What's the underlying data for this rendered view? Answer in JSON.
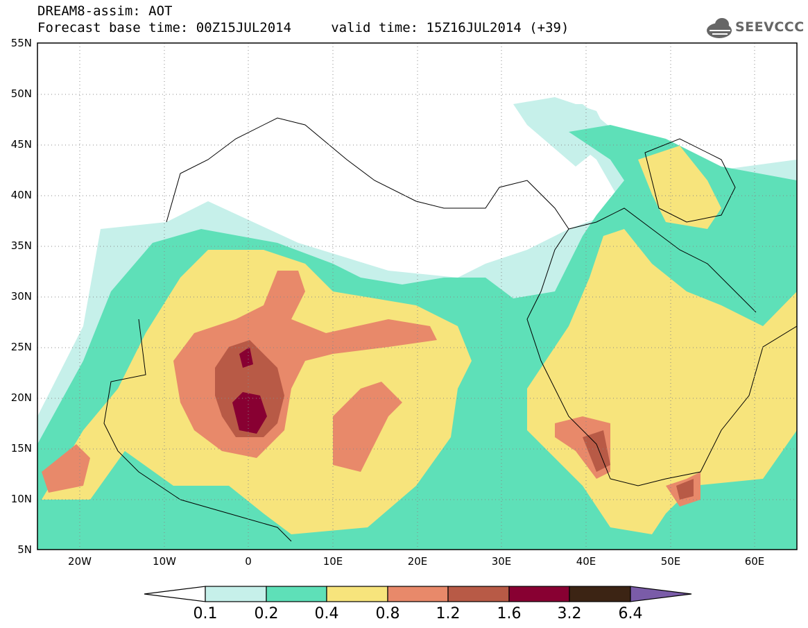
{
  "header": {
    "title_line1": "DREAM8-assim: AOT",
    "title_line2": "Forecast base time: 00Z15JUL2014     valid time: 15Z16JUL2014 (+39)",
    "logo_text": "SEEVCCC"
  },
  "map": {
    "lat_labels": [
      "55N",
      "50N",
      "45N",
      "40N",
      "35N",
      "30N",
      "25N",
      "20N",
      "15N",
      "10N",
      "5N"
    ],
    "lon_labels": [
      "20W",
      "10W",
      "0",
      "10E",
      "20E",
      "30E",
      "40E",
      "50E",
      "60E"
    ]
  },
  "colorbar": {
    "labels": [
      "0.1",
      "0.2",
      "0.4",
      "0.8",
      "1.2",
      "1.6",
      "3.2",
      "6.4"
    ],
    "colors": [
      "#c6f0ea",
      "#5ee0b8",
      "#f7e47c",
      "#e8896a",
      "#b85a46",
      "#880032",
      "#3c2414",
      "#7a5ca8"
    ]
  }
}
